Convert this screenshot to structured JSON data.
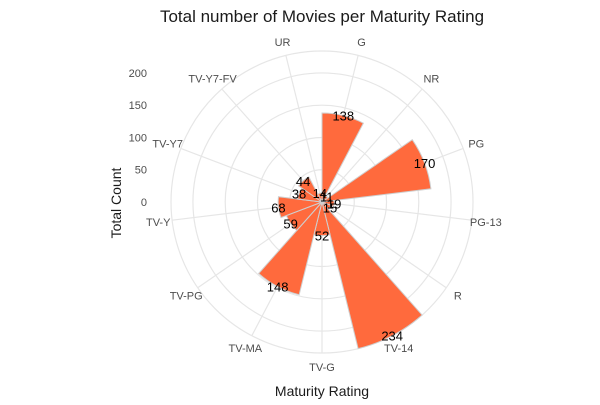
{
  "chart_data": {
    "type": "bar",
    "projection": "polar",
    "title": "Total number of Movies per Maturity Rating",
    "xlabel": "Maturity Rating",
    "ylabel": "Total Count",
    "categories": [
      "G",
      "NR",
      "PG",
      "PG-13",
      "R",
      "TV-14",
      "TV-G",
      "TV-MA",
      "TV-PG",
      "TV-Y",
      "TV-Y7",
      "TV-Y7-FV",
      "UR"
    ],
    "values": [
      138,
      11,
      170,
      19,
      15,
      234,
      52,
      148,
      59,
      68,
      38,
      44,
      14
    ],
    "r_ticks": [
      0,
      50,
      100,
      150,
      200
    ],
    "r_range": [
      0,
      234
    ],
    "grid": true,
    "bar_color": "#FF6A3D"
  }
}
